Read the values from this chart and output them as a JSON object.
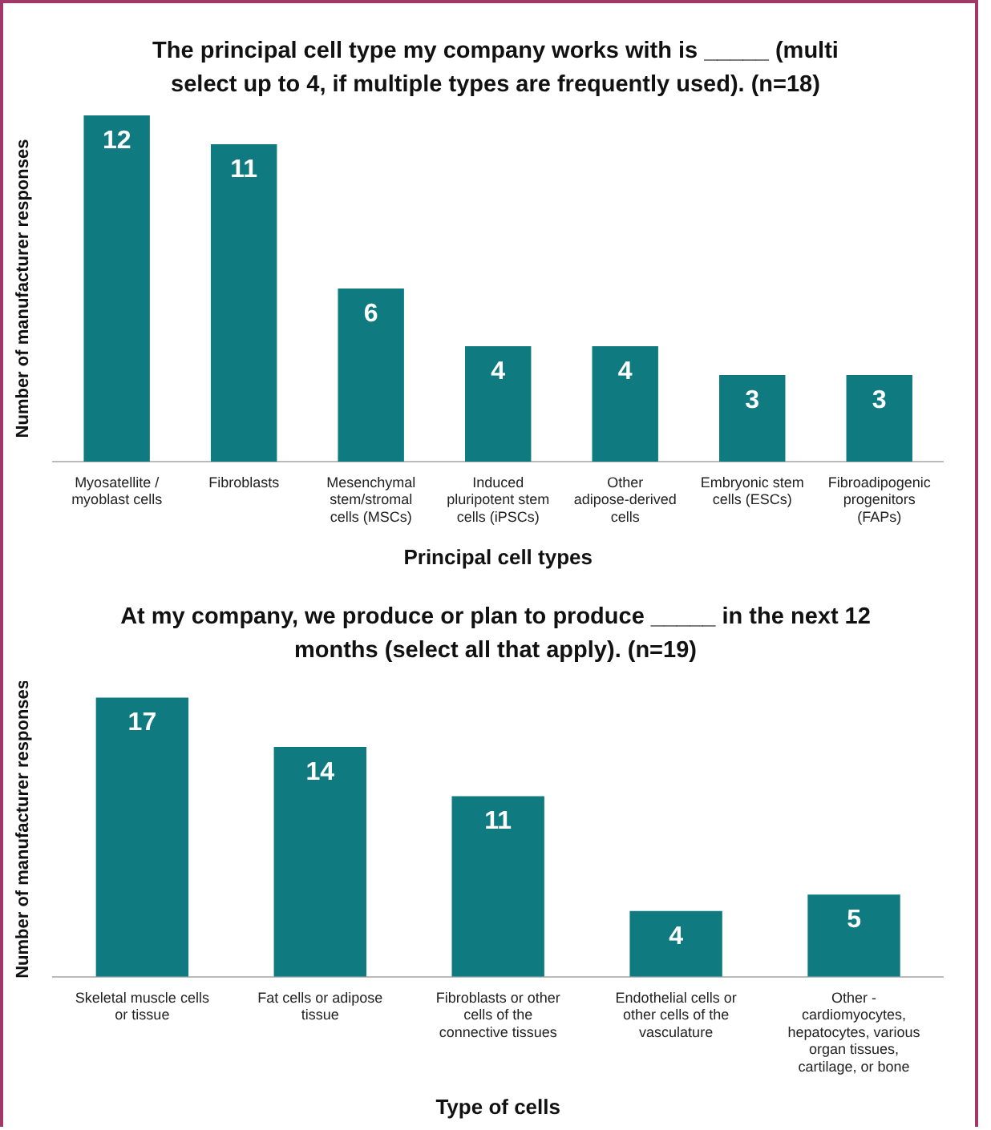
{
  "chart_data": [
    {
      "type": "bar",
      "title": "The principal cell type my company works with is _____ (multi select up to 4, if multiple types are frequently used). (n=18)",
      "xlabel": "Principal cell types",
      "ylabel": "Number of manufacturer responses",
      "categories": [
        "Myosatellite / myoblast cells",
        "Fibroblasts",
        "Mesenchymal stem/stromal cells (MSCs)",
        "Induced pluripotent stem cells (iPSCs)",
        "Other adipose-derived cells",
        "Embryonic stem cells (ESCs)",
        "Fibroadipogenic progenitors (FAPs)"
      ],
      "values": [
        12,
        11,
        6,
        4,
        4,
        3,
        3
      ],
      "color": "#0f7b80",
      "data_labels": true,
      "grid": false,
      "legend": false
    },
    {
      "type": "bar",
      "title": "At my company, we produce or plan to produce _____ in the next 12 months (select all that apply). (n=19)",
      "xlabel": "Type of cells",
      "ylabel": "Number of manufacturer responses",
      "categories": [
        "Skeletal muscle cells or tissue",
        "Fat cells or adipose tissue",
        "Fibroblasts or other cells of the connective tissues",
        "Endothelial cells or other cells of the vasculature",
        "Other - cardiomyocytes, hepatocytes, various organ tissues, cartilage, or bone"
      ],
      "values": [
        17,
        14,
        11,
        4,
        5
      ],
      "color": "#0f7b80",
      "data_labels": true,
      "grid": false,
      "legend": false
    }
  ]
}
